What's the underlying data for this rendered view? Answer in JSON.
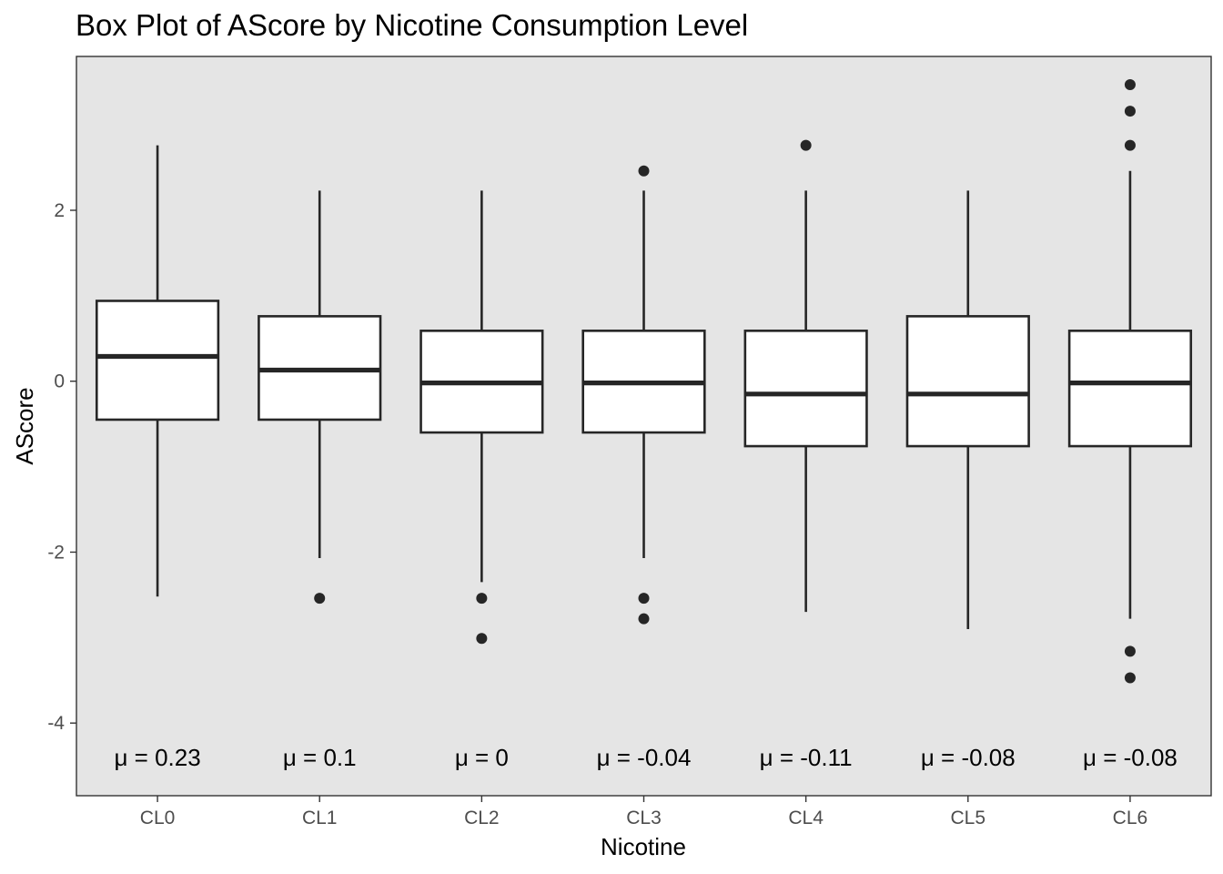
{
  "chart_data": {
    "type": "box",
    "title": "Box Plot of AScore by Nicotine Consumption Level",
    "xlabel": "Nicotine",
    "ylabel": "AScore",
    "ylim": [
      -4.85,
      3.8
    ],
    "yticks": [
      -4,
      -2,
      0,
      2
    ],
    "grid": false,
    "background": "#e5e5e5",
    "box_fill": "#ffffff",
    "line_color": "#262626",
    "categories": [
      "CL0",
      "CL1",
      "CL2",
      "CL3",
      "CL4",
      "CL5",
      "CL6"
    ],
    "boxes": [
      {
        "category": "CL0",
        "whisker_low": -2.52,
        "q1": -0.45,
        "median": 0.29,
        "q3": 0.94,
        "whisker_high": 2.76,
        "outliers": [],
        "mean_label": "μ = 0.23"
      },
      {
        "category": "CL1",
        "whisker_low": -2.07,
        "q1": -0.45,
        "median": 0.13,
        "q3": 0.76,
        "whisker_high": 2.23,
        "outliers": [
          -2.54
        ],
        "mean_label": "μ = 0.1"
      },
      {
        "category": "CL2",
        "whisker_low": -2.35,
        "q1": -0.6,
        "median": -0.02,
        "q3": 0.59,
        "whisker_high": 2.23,
        "outliers": [
          -2.54,
          -3.01
        ],
        "mean_label": "μ = 0"
      },
      {
        "category": "CL3",
        "whisker_low": -2.07,
        "q1": -0.6,
        "median": -0.02,
        "q3": 0.59,
        "whisker_high": 2.23,
        "outliers": [
          2.46,
          -2.54,
          -2.78
        ],
        "mean_label": "μ = -0.04"
      },
      {
        "category": "CL4",
        "whisker_low": -2.7,
        "q1": -0.76,
        "median": -0.15,
        "q3": 0.59,
        "whisker_high": 2.23,
        "outliers": [
          2.76
        ],
        "mean_label": "μ = -0.11"
      },
      {
        "category": "CL5",
        "whisker_low": -2.9,
        "q1": -0.76,
        "median": -0.15,
        "q3": 0.76,
        "whisker_high": 2.23,
        "outliers": [],
        "mean_label": "μ = -0.08"
      },
      {
        "category": "CL6",
        "whisker_low": -2.78,
        "q1": -0.76,
        "median": -0.02,
        "q3": 0.59,
        "whisker_high": 2.46,
        "outliers": [
          3.47,
          3.16,
          2.76,
          -3.16,
          -3.47
        ],
        "mean_label": "μ = -0.08"
      }
    ],
    "mean_label_y": -4.4
  }
}
